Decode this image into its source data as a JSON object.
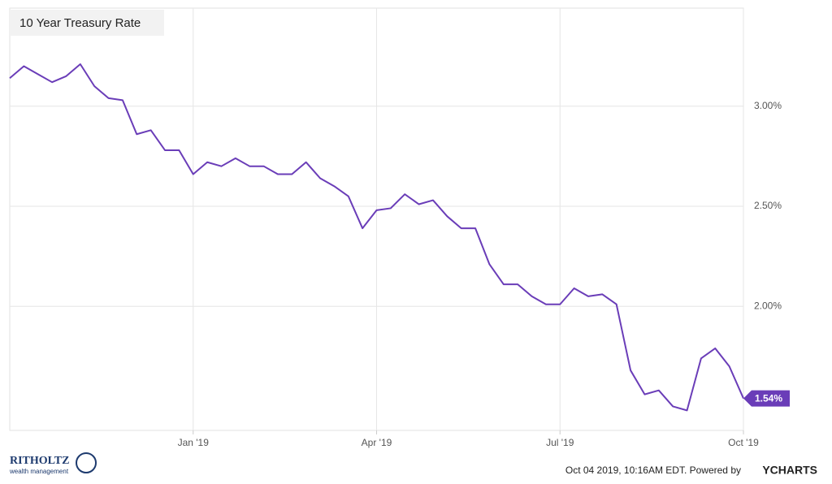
{
  "chart_data": {
    "type": "line",
    "title": "10 Year Treasury Rate",
    "categories": [
      null,
      null,
      null,
      null,
      null,
      null,
      null,
      null,
      null,
      null,
      null,
      null,
      null,
      "Jan '19",
      null,
      null,
      null,
      null,
      null,
      null,
      null,
      null,
      null,
      null,
      null,
      null,
      "Apr '19",
      null,
      null,
      null,
      null,
      null,
      null,
      null,
      null,
      null,
      null,
      null,
      null,
      "Jul '19",
      null,
      null,
      null,
      null,
      null,
      null,
      null,
      null,
      null,
      null,
      null,
      null,
      "Oct '19"
    ],
    "series": [
      {
        "name": "10 Year Treasury Rate",
        "color": "#6a3db8",
        "values": [
          3.14,
          3.2,
          3.16,
          3.12,
          3.15,
          3.21,
          3.1,
          3.04,
          3.03,
          2.86,
          2.88,
          2.78,
          2.78,
          2.66,
          2.72,
          2.7,
          2.74,
          2.7,
          2.7,
          2.66,
          2.66,
          2.72,
          2.64,
          2.6,
          2.55,
          2.39,
          2.48,
          2.49,
          2.56,
          2.51,
          2.53,
          2.45,
          2.39,
          2.39,
          2.21,
          2.11,
          2.11,
          2.05,
          2.01,
          2.01,
          2.09,
          2.05,
          2.06,
          2.01,
          1.68,
          1.56,
          1.58,
          1.5,
          1.48,
          1.74,
          1.79,
          1.7,
          1.54
        ],
        "value_labels": [
          null,
          null,
          null,
          null,
          null,
          null,
          null,
          null,
          null,
          null,
          null,
          null,
          null,
          null,
          null,
          null,
          null,
          null,
          null,
          null,
          null,
          null,
          null,
          null,
          null,
          null,
          null,
          null,
          null,
          null,
          null,
          null,
          null,
          null,
          null,
          null,
          null,
          null,
          null,
          null,
          null,
          null,
          null,
          null,
          null,
          null,
          null,
          null,
          null,
          null,
          null,
          null,
          "1.54%"
        ]
      }
    ],
    "ylim": [
      1.38,
      3.49
    ],
    "yticks": [
      {
        "value": 2,
        "label": "2.00%"
      },
      {
        "value": 2.5,
        "label": "2.50%"
      },
      {
        "value": 3,
        "label": "3.00%"
      }
    ],
    "grid": true
  },
  "footer": {
    "timestamp": "Oct 04 2019, 10:16AM EDT. Powered by",
    "brand": "YCHARTS"
  },
  "logo": {
    "name": "RITHOLTZ",
    "tagline": "wealth management"
  }
}
